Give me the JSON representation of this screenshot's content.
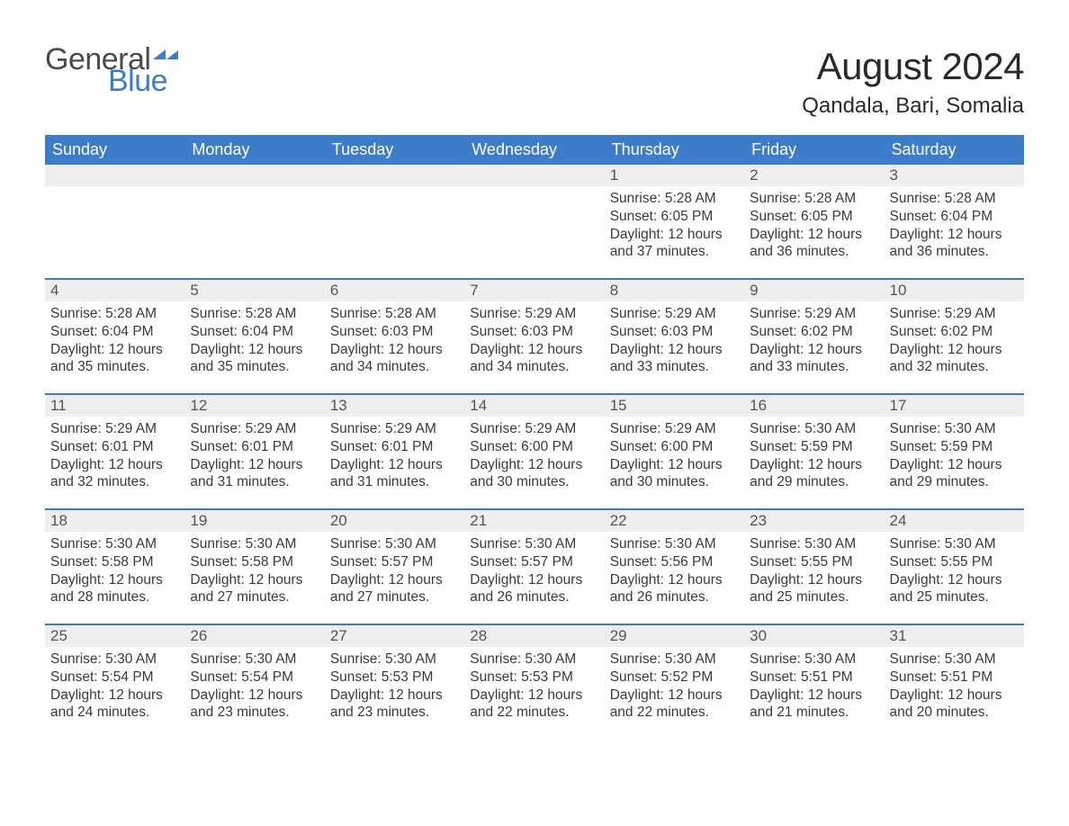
{
  "logo": {
    "text1": "General",
    "text2": "Blue",
    "text1_color": "#4a4a4a",
    "text2_color": "#3d7cc9",
    "icon_color": "#3d7cc9"
  },
  "title": "August 2024",
  "location": "Qandala, Bari, Somalia",
  "colors": {
    "header_bg": "#3d7cc9",
    "header_text": "#ffffff",
    "date_bg": "#eeeeee",
    "date_text": "#555555",
    "body_text": "#3a3a3a",
    "row_border": "#3d7cc9",
    "page_bg": "#ffffff"
  },
  "day_names": [
    "Sunday",
    "Monday",
    "Tuesday",
    "Wednesday",
    "Thursday",
    "Friday",
    "Saturday"
  ],
  "weeks": [
    [
      {
        "date": "",
        "sunrise": "",
        "sunset": "",
        "daylight": ""
      },
      {
        "date": "",
        "sunrise": "",
        "sunset": "",
        "daylight": ""
      },
      {
        "date": "",
        "sunrise": "",
        "sunset": "",
        "daylight": ""
      },
      {
        "date": "",
        "sunrise": "",
        "sunset": "",
        "daylight": ""
      },
      {
        "date": "1",
        "sunrise": "Sunrise: 5:28 AM",
        "sunset": "Sunset: 6:05 PM",
        "daylight": "Daylight: 12 hours and 37 minutes."
      },
      {
        "date": "2",
        "sunrise": "Sunrise: 5:28 AM",
        "sunset": "Sunset: 6:05 PM",
        "daylight": "Daylight: 12 hours and 36 minutes."
      },
      {
        "date": "3",
        "sunrise": "Sunrise: 5:28 AM",
        "sunset": "Sunset: 6:04 PM",
        "daylight": "Daylight: 12 hours and 36 minutes."
      }
    ],
    [
      {
        "date": "4",
        "sunrise": "Sunrise: 5:28 AM",
        "sunset": "Sunset: 6:04 PM",
        "daylight": "Daylight: 12 hours and 35 minutes."
      },
      {
        "date": "5",
        "sunrise": "Sunrise: 5:28 AM",
        "sunset": "Sunset: 6:04 PM",
        "daylight": "Daylight: 12 hours and 35 minutes."
      },
      {
        "date": "6",
        "sunrise": "Sunrise: 5:28 AM",
        "sunset": "Sunset: 6:03 PM",
        "daylight": "Daylight: 12 hours and 34 minutes."
      },
      {
        "date": "7",
        "sunrise": "Sunrise: 5:29 AM",
        "sunset": "Sunset: 6:03 PM",
        "daylight": "Daylight: 12 hours and 34 minutes."
      },
      {
        "date": "8",
        "sunrise": "Sunrise: 5:29 AM",
        "sunset": "Sunset: 6:03 PM",
        "daylight": "Daylight: 12 hours and 33 minutes."
      },
      {
        "date": "9",
        "sunrise": "Sunrise: 5:29 AM",
        "sunset": "Sunset: 6:02 PM",
        "daylight": "Daylight: 12 hours and 33 minutes."
      },
      {
        "date": "10",
        "sunrise": "Sunrise: 5:29 AM",
        "sunset": "Sunset: 6:02 PM",
        "daylight": "Daylight: 12 hours and 32 minutes."
      }
    ],
    [
      {
        "date": "11",
        "sunrise": "Sunrise: 5:29 AM",
        "sunset": "Sunset: 6:01 PM",
        "daylight": "Daylight: 12 hours and 32 minutes."
      },
      {
        "date": "12",
        "sunrise": "Sunrise: 5:29 AM",
        "sunset": "Sunset: 6:01 PM",
        "daylight": "Daylight: 12 hours and 31 minutes."
      },
      {
        "date": "13",
        "sunrise": "Sunrise: 5:29 AM",
        "sunset": "Sunset: 6:01 PM",
        "daylight": "Daylight: 12 hours and 31 minutes."
      },
      {
        "date": "14",
        "sunrise": "Sunrise: 5:29 AM",
        "sunset": "Sunset: 6:00 PM",
        "daylight": "Daylight: 12 hours and 30 minutes."
      },
      {
        "date": "15",
        "sunrise": "Sunrise: 5:29 AM",
        "sunset": "Sunset: 6:00 PM",
        "daylight": "Daylight: 12 hours and 30 minutes."
      },
      {
        "date": "16",
        "sunrise": "Sunrise: 5:30 AM",
        "sunset": "Sunset: 5:59 PM",
        "daylight": "Daylight: 12 hours and 29 minutes."
      },
      {
        "date": "17",
        "sunrise": "Sunrise: 5:30 AM",
        "sunset": "Sunset: 5:59 PM",
        "daylight": "Daylight: 12 hours and 29 minutes."
      }
    ],
    [
      {
        "date": "18",
        "sunrise": "Sunrise: 5:30 AM",
        "sunset": "Sunset: 5:58 PM",
        "daylight": "Daylight: 12 hours and 28 minutes."
      },
      {
        "date": "19",
        "sunrise": "Sunrise: 5:30 AM",
        "sunset": "Sunset: 5:58 PM",
        "daylight": "Daylight: 12 hours and 27 minutes."
      },
      {
        "date": "20",
        "sunrise": "Sunrise: 5:30 AM",
        "sunset": "Sunset: 5:57 PM",
        "daylight": "Daylight: 12 hours and 27 minutes."
      },
      {
        "date": "21",
        "sunrise": "Sunrise: 5:30 AM",
        "sunset": "Sunset: 5:57 PM",
        "daylight": "Daylight: 12 hours and 26 minutes."
      },
      {
        "date": "22",
        "sunrise": "Sunrise: 5:30 AM",
        "sunset": "Sunset: 5:56 PM",
        "daylight": "Daylight: 12 hours and 26 minutes."
      },
      {
        "date": "23",
        "sunrise": "Sunrise: 5:30 AM",
        "sunset": "Sunset: 5:55 PM",
        "daylight": "Daylight: 12 hours and 25 minutes."
      },
      {
        "date": "24",
        "sunrise": "Sunrise: 5:30 AM",
        "sunset": "Sunset: 5:55 PM",
        "daylight": "Daylight: 12 hours and 25 minutes."
      }
    ],
    [
      {
        "date": "25",
        "sunrise": "Sunrise: 5:30 AM",
        "sunset": "Sunset: 5:54 PM",
        "daylight": "Daylight: 12 hours and 24 minutes."
      },
      {
        "date": "26",
        "sunrise": "Sunrise: 5:30 AM",
        "sunset": "Sunset: 5:54 PM",
        "daylight": "Daylight: 12 hours and 23 minutes."
      },
      {
        "date": "27",
        "sunrise": "Sunrise: 5:30 AM",
        "sunset": "Sunset: 5:53 PM",
        "daylight": "Daylight: 12 hours and 23 minutes."
      },
      {
        "date": "28",
        "sunrise": "Sunrise: 5:30 AM",
        "sunset": "Sunset: 5:53 PM",
        "daylight": "Daylight: 12 hours and 22 minutes."
      },
      {
        "date": "29",
        "sunrise": "Sunrise: 5:30 AM",
        "sunset": "Sunset: 5:52 PM",
        "daylight": "Daylight: 12 hours and 22 minutes."
      },
      {
        "date": "30",
        "sunrise": "Sunrise: 5:30 AM",
        "sunset": "Sunset: 5:51 PM",
        "daylight": "Daylight: 12 hours and 21 minutes."
      },
      {
        "date": "31",
        "sunrise": "Sunrise: 5:30 AM",
        "sunset": "Sunset: 5:51 PM",
        "daylight": "Daylight: 12 hours and 20 minutes."
      }
    ]
  ]
}
